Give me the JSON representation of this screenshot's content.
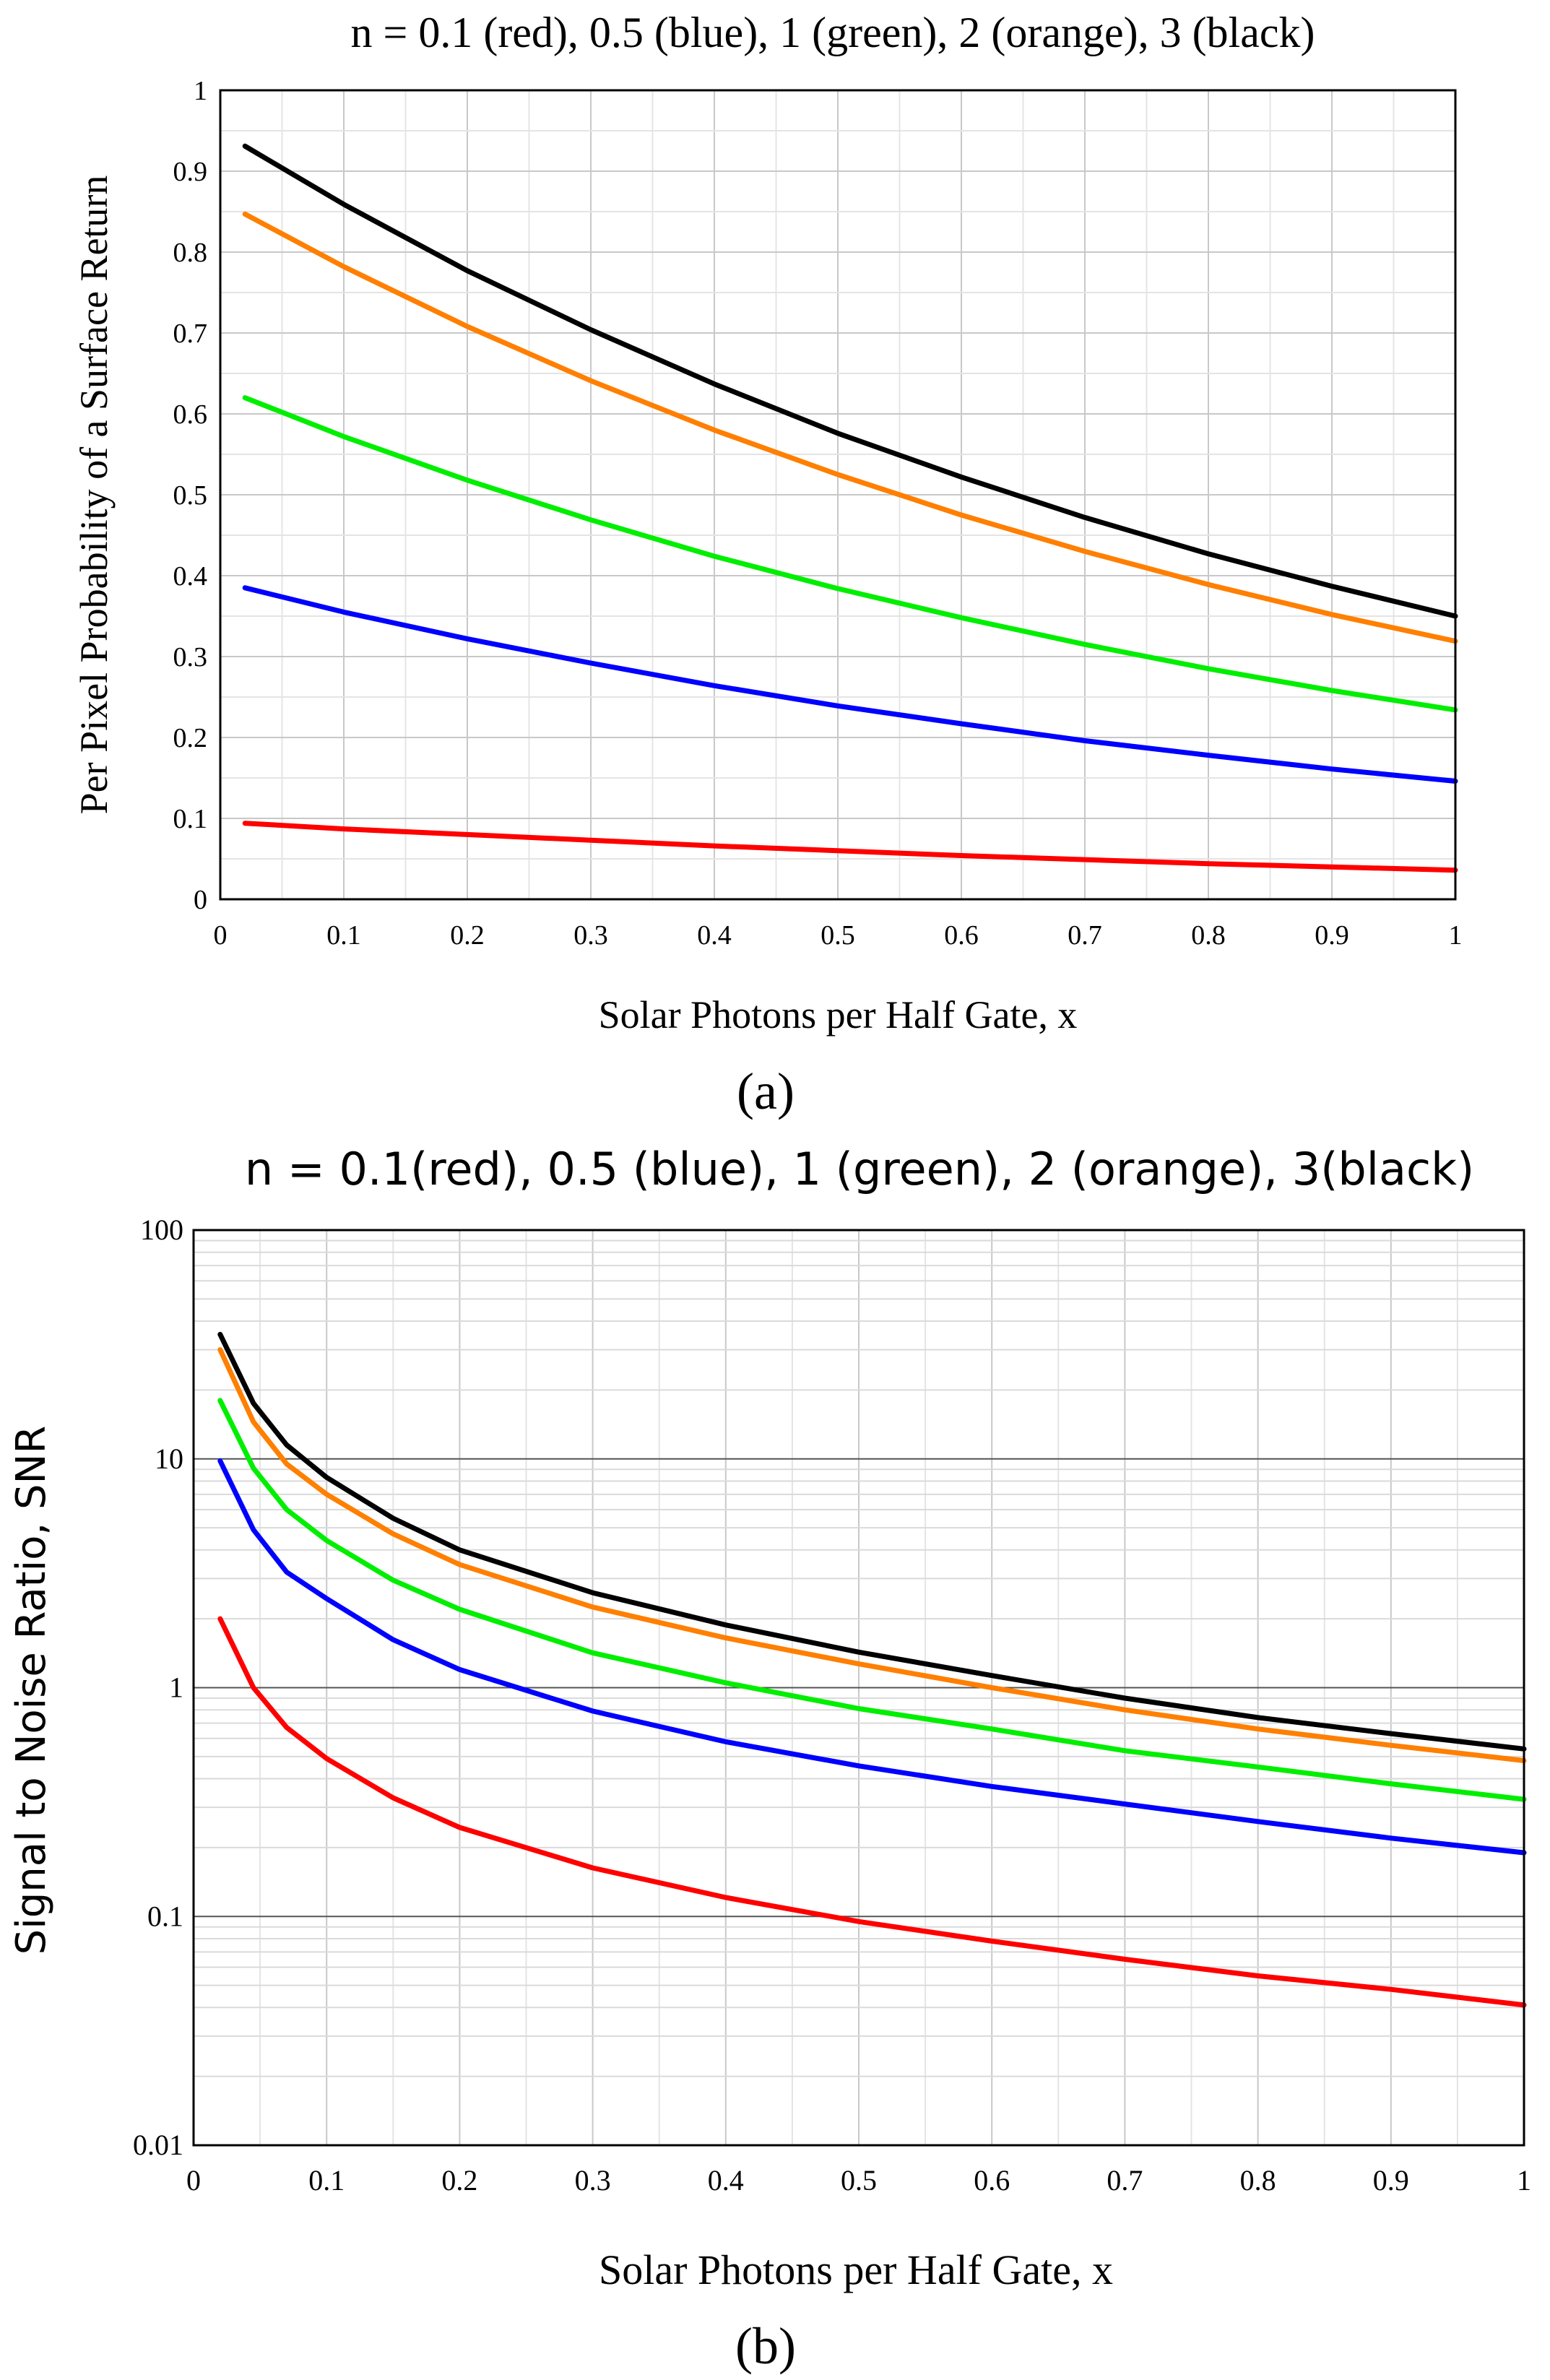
{
  "chart_data": [
    {
      "panel_label": "(a)",
      "type": "line",
      "title": "n = 0.1 (red), 0.5 (blue), 1 (green), 2 (orange), 3 (black)",
      "xlabel": "Solar Photons per Half Gate, x",
      "ylabel": "Per Pixel Probability of a Surface Return",
      "xlim": [
        0,
        1
      ],
      "ylim": [
        0,
        1
      ],
      "yscale": "linear",
      "x_ticks": [
        "0",
        "0.1",
        "0.2",
        "0.3",
        "0.4",
        "0.5",
        "0.6",
        "0.7",
        "0.8",
        "0.9",
        "1"
      ],
      "y_ticks": [
        "0",
        "0.1",
        "0.2",
        "0.3",
        "0.4",
        "0.5",
        "0.6",
        "0.7",
        "0.8",
        "0.9",
        "1"
      ],
      "grid": true,
      "x": [
        0.02,
        0.1,
        0.2,
        0.3,
        0.4,
        0.5,
        0.6,
        0.7,
        0.8,
        0.9,
        1.0
      ],
      "series": [
        {
          "name": "n = 0.1",
          "color": "#ff0000",
          "values": [
            0.094,
            0.087,
            0.08,
            0.073,
            0.066,
            0.06,
            0.054,
            0.049,
            0.044,
            0.04,
            0.036
          ]
        },
        {
          "name": "n = 0.5",
          "color": "#0000ff",
          "values": [
            0.385,
            0.355,
            0.322,
            0.292,
            0.264,
            0.239,
            0.217,
            0.196,
            0.178,
            0.161,
            0.146
          ]
        },
        {
          "name": "n = 1",
          "color": "#00ee00",
          "values": [
            0.62,
            0.572,
            0.518,
            0.469,
            0.424,
            0.384,
            0.348,
            0.315,
            0.285,
            0.258,
            0.234
          ]
        },
        {
          "name": "n = 2",
          "color": "#ff7f00",
          "values": [
            0.847,
            0.782,
            0.708,
            0.641,
            0.58,
            0.525,
            0.475,
            0.43,
            0.389,
            0.352,
            0.319
          ]
        },
        {
          "name": "n = 3",
          "color": "#000000",
          "values": [
            0.931,
            0.859,
            0.777,
            0.704,
            0.637,
            0.576,
            0.522,
            0.472,
            0.427,
            0.387,
            0.35
          ]
        }
      ]
    },
    {
      "panel_label": "(b)",
      "type": "line",
      "title": "n = 0.1(red), 0.5 (blue), 1 (green), 2 (orange), 3(black)",
      "xlabel": "Solar Photons per Half Gate, x",
      "ylabel": "Signal to Noise Ratio, SNR",
      "xlim": [
        0,
        1
      ],
      "ylim": [
        0.01,
        100
      ],
      "yscale": "log",
      "x_ticks": [
        "0",
        "0.1",
        "0.2",
        "0.3",
        "0.4",
        "0.5",
        "0.6",
        "0.7",
        "0.8",
        "0.9",
        "1"
      ],
      "y_ticks": [
        "0.01",
        "0.1",
        "1",
        "10",
        "100"
      ],
      "grid": true,
      "x": [
        0.02,
        0.045,
        0.07,
        0.1,
        0.15,
        0.2,
        0.3,
        0.4,
        0.5,
        0.6,
        0.7,
        0.8,
        0.9,
        1.0
      ],
      "series": [
        {
          "name": "n = 0.1",
          "color": "#ff0000",
          "values": [
            2.0,
            1.0,
            0.67,
            0.49,
            0.33,
            0.245,
            0.163,
            0.121,
            0.095,
            0.078,
            0.065,
            0.055,
            0.048,
            0.041
          ]
        },
        {
          "name": "n = 0.5",
          "color": "#0000ff",
          "values": [
            9.8,
            4.9,
            3.2,
            2.45,
            1.62,
            1.2,
            0.79,
            0.58,
            0.455,
            0.37,
            0.31,
            0.26,
            0.22,
            0.19
          ]
        },
        {
          "name": "n = 1",
          "color": "#00ee00",
          "values": [
            18.0,
            9.1,
            6.0,
            4.4,
            2.95,
            2.2,
            1.42,
            1.05,
            0.81,
            0.66,
            0.53,
            0.45,
            0.38,
            0.325
          ]
        },
        {
          "name": "n = 2",
          "color": "#ff7f00",
          "values": [
            30.0,
            14.5,
            9.5,
            7.0,
            4.7,
            3.45,
            2.25,
            1.65,
            1.27,
            1.0,
            0.8,
            0.66,
            0.56,
            0.48
          ]
        },
        {
          "name": "n = 3",
          "color": "#000000",
          "values": [
            35.0,
            17.5,
            11.5,
            8.3,
            5.5,
            4.0,
            2.6,
            1.88,
            1.43,
            1.13,
            0.9,
            0.74,
            0.63,
            0.54
          ]
        }
      ]
    }
  ]
}
